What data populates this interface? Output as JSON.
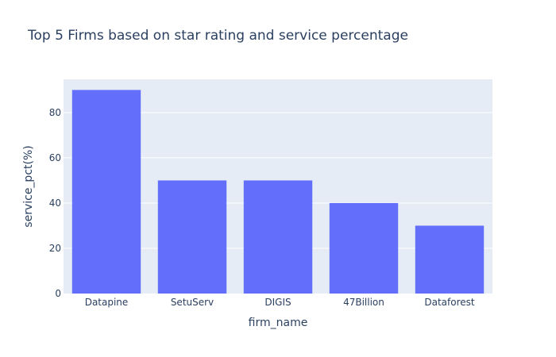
{
  "chart_data": {
    "type": "bar",
    "title": "Top 5 Firms based on star rating and service percentage",
    "xlabel": "firm_name",
    "ylabel": "service_pct(%)",
    "categories": [
      "Datapine",
      "SetuServ",
      "DIGIS",
      "47Billion",
      "Dataforest"
    ],
    "values": [
      90,
      50,
      50,
      40,
      30
    ],
    "ylim": [
      0,
      94.7
    ],
    "yticks": [
      0,
      20,
      40,
      60,
      80
    ],
    "grid": true,
    "legend": "none",
    "colors": {
      "bar": "#636efa",
      "plot_background": "#e5ecf6",
      "gridline": "#ffffff",
      "text": "#2a3f5f"
    }
  }
}
